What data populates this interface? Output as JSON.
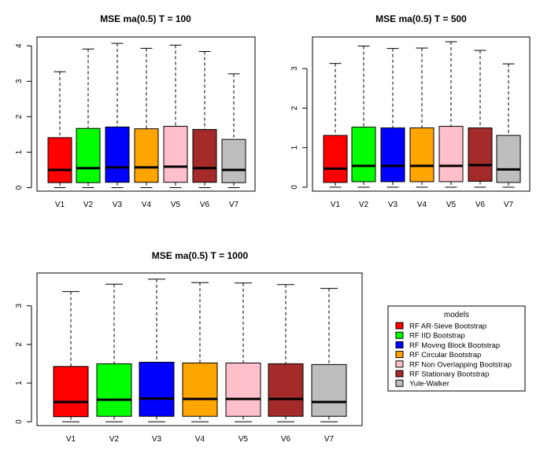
{
  "legend": {
    "title": "models",
    "entries": [
      {
        "label": "RF AR-Sieve Bootstrap",
        "color": "#ff0000"
      },
      {
        "label": "RF IID Bootstrap",
        "color": "#00ff00"
      },
      {
        "label": "RF Moving Block Bootstrap",
        "color": "#0000ff"
      },
      {
        "label": "RF Circular Bootstrap",
        "color": "#ffa500"
      },
      {
        "label": "RF Non Overlapping Bootstrap",
        "color": "#ffc0cb"
      },
      {
        "label": "RF Stationary Bootstrap",
        "color": "#a52a2a"
      },
      {
        "label": "Yule-Walker",
        "color": "#bebebe"
      }
    ]
  },
  "chart_data": [
    {
      "type": "box",
      "title": "MSE ma(0.5) T = 100",
      "categories": [
        "V1",
        "V2",
        "V3",
        "V4",
        "V5",
        "V6",
        "V7"
      ],
      "ylim": [
        -0.1,
        4.25
      ],
      "yticks": [
        0,
        1,
        2,
        3,
        4
      ],
      "series": [
        {
          "q1": 0.14,
          "median": 0.5,
          "q3": 1.41,
          "whisker_low": 0.0,
          "whisker_high": 3.27
        },
        {
          "q1": 0.14,
          "median": 0.55,
          "q3": 1.67,
          "whisker_low": 0.0,
          "whisker_high": 3.91
        },
        {
          "q1": 0.15,
          "median": 0.57,
          "q3": 1.71,
          "whisker_low": 0.0,
          "whisker_high": 4.07
        },
        {
          "q1": 0.15,
          "median": 0.57,
          "q3": 1.66,
          "whisker_low": 0.0,
          "whisker_high": 3.93
        },
        {
          "q1": 0.15,
          "median": 0.59,
          "q3": 1.73,
          "whisker_low": 0.0,
          "whisker_high": 4.02
        },
        {
          "q1": 0.15,
          "median": 0.55,
          "q3": 1.64,
          "whisker_low": 0.0,
          "whisker_high": 3.84
        },
        {
          "q1": 0.14,
          "median": 0.5,
          "q3": 1.36,
          "whisker_low": 0.0,
          "whisker_high": 3.21
        }
      ]
    },
    {
      "type": "box",
      "title": "MSE ma(0.5) T = 500",
      "categories": [
        "V1",
        "V2",
        "V3",
        "V4",
        "V5",
        "V6",
        "V7"
      ],
      "ylim": [
        -0.1,
        3.8
      ],
      "yticks": [
        0,
        1,
        2,
        3
      ],
      "series": [
        {
          "q1": 0.12,
          "median": 0.47,
          "q3": 1.31,
          "whisker_low": 0.0,
          "whisker_high": 3.13
        },
        {
          "q1": 0.14,
          "median": 0.54,
          "q3": 1.52,
          "whisker_low": 0.0,
          "whisker_high": 3.57
        },
        {
          "q1": 0.14,
          "median": 0.54,
          "q3": 1.5,
          "whisker_low": 0.0,
          "whisker_high": 3.51
        },
        {
          "q1": 0.14,
          "median": 0.54,
          "q3": 1.5,
          "whisker_low": 0.0,
          "whisker_high": 3.52
        },
        {
          "q1": 0.14,
          "median": 0.54,
          "q3": 1.54,
          "whisker_low": 0.0,
          "whisker_high": 3.68
        },
        {
          "q1": 0.15,
          "median": 0.56,
          "q3": 1.5,
          "whisker_low": 0.0,
          "whisker_high": 3.46
        },
        {
          "q1": 0.12,
          "median": 0.45,
          "q3": 1.31,
          "whisker_low": 0.0,
          "whisker_high": 3.12
        }
      ]
    },
    {
      "type": "box",
      "title": "MSE ma(0.5) T = 1000",
      "categories": [
        "V1",
        "V2",
        "V3",
        "V4",
        "V5",
        "V6",
        "V7"
      ],
      "ylim": [
        -0.1,
        3.85
      ],
      "yticks": [
        0,
        1,
        2,
        3
      ],
      "series": [
        {
          "q1": 0.13,
          "median": 0.51,
          "q3": 1.43,
          "whisker_low": 0.0,
          "whisker_high": 3.37
        },
        {
          "q1": 0.14,
          "median": 0.57,
          "q3": 1.5,
          "whisker_low": 0.0,
          "whisker_high": 3.56
        },
        {
          "q1": 0.14,
          "median": 0.6,
          "q3": 1.54,
          "whisker_low": 0.0,
          "whisker_high": 3.69
        },
        {
          "q1": 0.14,
          "median": 0.59,
          "q3": 1.52,
          "whisker_low": 0.0,
          "whisker_high": 3.6
        },
        {
          "q1": 0.14,
          "median": 0.59,
          "q3": 1.52,
          "whisker_low": 0.0,
          "whisker_high": 3.59
        },
        {
          "q1": 0.14,
          "median": 0.59,
          "q3": 1.5,
          "whisker_low": 0.0,
          "whisker_high": 3.55
        },
        {
          "q1": 0.14,
          "median": 0.51,
          "q3": 1.48,
          "whisker_low": 0.0,
          "whisker_high": 3.45
        }
      ]
    }
  ]
}
